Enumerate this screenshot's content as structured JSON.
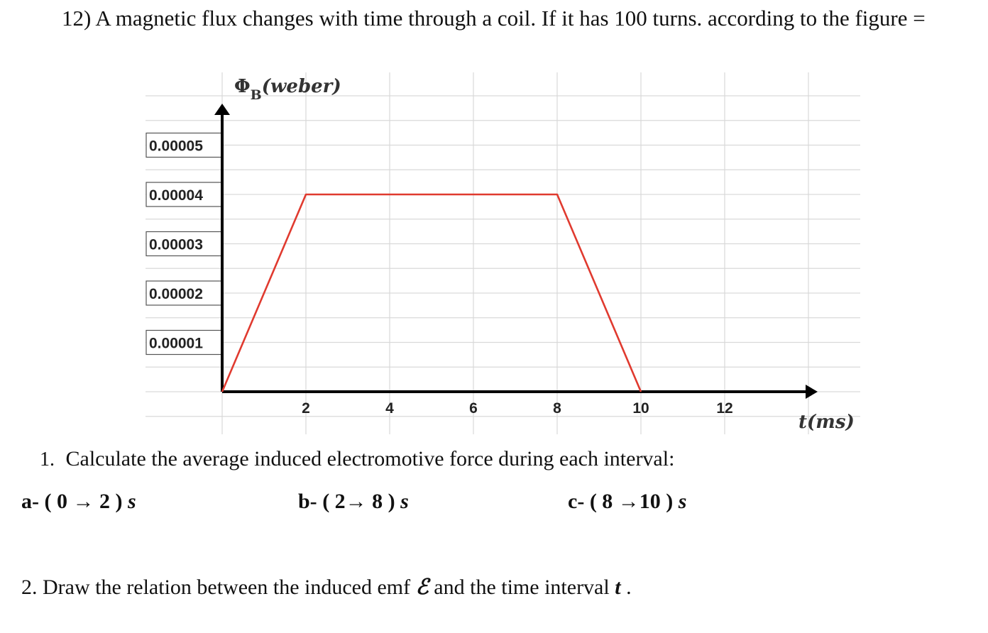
{
  "question": {
    "number": "12)",
    "text": "A magnetic flux changes with time through a coil. If it has 100 turns. according to the figure ="
  },
  "chart_data": {
    "type": "line",
    "ylabel_symbol": "Φ",
    "ylabel_subscript": "B",
    "ylabel_unit": "(weber)",
    "xlabel": "t(ms)",
    "x_ticks": [
      "2",
      "4",
      "6",
      "8",
      "10",
      "12"
    ],
    "y_ticks": [
      "0.00001",
      "0.00002",
      "0.00003",
      "0.00004",
      "0.00005"
    ],
    "xlim": [
      0,
      14
    ],
    "ylim": [
      0,
      6e-05
    ],
    "grid": true,
    "series": [
      {
        "color": "#e03a2f",
        "x": [
          0,
          2,
          8,
          10
        ],
        "y": [
          0,
          4e-05,
          4e-05,
          0
        ]
      }
    ]
  },
  "instruction_1": {
    "number": "1.",
    "text": "Calculate the average induced electromotive force during each interval:"
  },
  "parts": [
    {
      "label": "a-",
      "interval": "( 0 → 2 )",
      "unit": "s"
    },
    {
      "label": "b-",
      "interval": "( 2→ 8 )",
      "unit": "s"
    },
    {
      "label": "c-",
      "interval": "( 8 →10 )",
      "unit": "s"
    }
  ],
  "instruction_2": {
    "text": "2. Draw the relation between the induced emf",
    "symbol": "ℰ",
    "mid": "and the time interval",
    "tsym": "t",
    "end": "."
  },
  "colors": {
    "axis": "#000000",
    "grid": "#d9d9d9",
    "series": "#e03a2f"
  }
}
